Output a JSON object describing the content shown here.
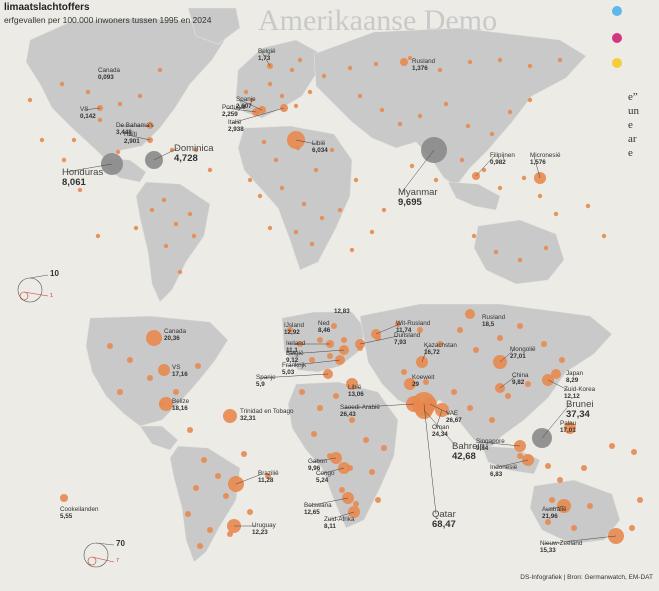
{
  "header": {
    "title": "limaatslachtoffers",
    "subtitle": "erfgevallen per 100.000 inwoners tussen 1995 en 2024"
  },
  "background_text": {
    "headline": "Amerikaanse Demo",
    "right_strip": "e”\nun\ne\nar\ne"
  },
  "credit": "DS-Infografiek | Bron: Germanwatch, EM-DAT",
  "colors": {
    "dot": "#e8884f",
    "dot_highlight": "#8a8a8a",
    "land": "#c9c9c9",
    "sea": "#ecebe6"
  },
  "map1": {
    "legend": {
      "big": "10",
      "small": "1"
    },
    "labels": [
      {
        "id": "canada",
        "name": "Canada",
        "value": "0,093"
      },
      {
        "id": "vs",
        "name": "VS",
        "value": "0,142"
      },
      {
        "id": "belgie",
        "name": "België",
        "value": "1,73"
      },
      {
        "id": "rusland",
        "name": "Rusland",
        "value": "1,376"
      },
      {
        "id": "spanje",
        "name": "Spanje",
        "value": "2,607"
      },
      {
        "id": "portugal",
        "name": "Portugal",
        "value": "2,259"
      },
      {
        "id": "italie",
        "name": "Italië",
        "value": "2,938"
      },
      {
        "id": "bahamas",
        "name": "De Bahama's",
        "value": "3,448"
      },
      {
        "id": "haiti",
        "name": "Haïti",
        "value": "2,901"
      },
      {
        "id": "dominica",
        "name": "Dominica",
        "value": "4,728"
      },
      {
        "id": "honduras",
        "name": "Honduras",
        "value": "8,061"
      },
      {
        "id": "libie",
        "name": "Libië",
        "value": "6,034"
      },
      {
        "id": "myanmar",
        "name": "Myanmar",
        "value": "9,695"
      },
      {
        "id": "filipijnen",
        "name": "Filipijnen",
        "value": "0,982"
      },
      {
        "id": "micronesie",
        "name": "Micronesië",
        "value": "1,576"
      }
    ]
  },
  "map2": {
    "legend": {
      "big": "70",
      "small": "7"
    },
    "labels": [
      {
        "id": "canada",
        "name": "Canada",
        "value": "20,36"
      },
      {
        "id": "ijsland",
        "name": "IJsland",
        "value": "12,92"
      },
      {
        "id": "ned",
        "name": "Ned",
        "value": "8,46"
      },
      {
        "id": "top",
        "name": "",
        "value": "12,83"
      },
      {
        "id": "witrusland",
        "name": "Wit-Rusland",
        "value": "11,74"
      },
      {
        "id": "rusland",
        "name": "Rusland",
        "value": "18,5"
      },
      {
        "id": "ierland",
        "name": "Ierland",
        "value": "11,1"
      },
      {
        "id": "duitsland",
        "name": "Duitsland",
        "value": "7,93"
      },
      {
        "id": "belgie",
        "name": "België",
        "value": "9,12"
      },
      {
        "id": "frankrijk",
        "name": "Frankrijk",
        "value": "5,03"
      },
      {
        "id": "spanje",
        "name": "Spanje",
        "value": "5,9"
      },
      {
        "id": "kazachstan",
        "name": "Kazachstan",
        "value": "16,72"
      },
      {
        "id": "mongolie",
        "name": "Mongolië",
        "value": "27,01"
      },
      {
        "id": "vs",
        "name": "VS",
        "value": "17,16"
      },
      {
        "id": "libie",
        "name": "Libië",
        "value": "13,06"
      },
      {
        "id": "koeweit",
        "name": "Koeweit",
        "value": "29"
      },
      {
        "id": "japan",
        "name": "Japan",
        "value": "8,29"
      },
      {
        "id": "china",
        "name": "China",
        "value": "9,82"
      },
      {
        "id": "zuidkorea",
        "name": "Zuid-Korea",
        "value": "12,12"
      },
      {
        "id": "belize",
        "name": "Belize",
        "value": "18,16"
      },
      {
        "id": "saoedi",
        "name": "Saoedi-Arabië",
        "value": "26,43"
      },
      {
        "id": "vae",
        "name": "VAE",
        "value": "26,67"
      },
      {
        "id": "oman",
        "name": "Oman",
        "value": "24,34"
      },
      {
        "id": "brunei",
        "name": "Brunei",
        "value": "37,34"
      },
      {
        "id": "palau",
        "name": "Palau",
        "value": "17,01"
      },
      {
        "id": "trinidad",
        "name": "Trinidad en Tobago",
        "value": "32,31"
      },
      {
        "id": "singapore",
        "name": "Singapore",
        "value": "9,84"
      },
      {
        "id": "gabon",
        "name": "Gabon",
        "value": "9,96"
      },
      {
        "id": "congo",
        "name": "Congo",
        "value": "5,24"
      },
      {
        "id": "bahrein",
        "name": "Bahrein",
        "value": "42,68"
      },
      {
        "id": "indonesie",
        "name": "Indonesië",
        "value": "6,83"
      },
      {
        "id": "brazilie",
        "name": "Brazilië",
        "value": "11,28"
      },
      {
        "id": "botswana",
        "name": "Botswana",
        "value": "12,65"
      },
      {
        "id": "australie",
        "name": "Australië",
        "value": "21,96"
      },
      {
        "id": "cookeilanden",
        "name": "Cookeilanden",
        "value": "5,55"
      },
      {
        "id": "uruguay",
        "name": "Uruguay",
        "value": "12,23"
      },
      {
        "id": "zuidafrika",
        "name": "Zuid-Afrika",
        "value": "8,11"
      },
      {
        "id": "qatar",
        "name": "Qatar",
        "value": "68,47"
      },
      {
        "id": "nieuwzeeland",
        "name": "Nieuw-Zeeland",
        "value": "15,33"
      }
    ]
  }
}
